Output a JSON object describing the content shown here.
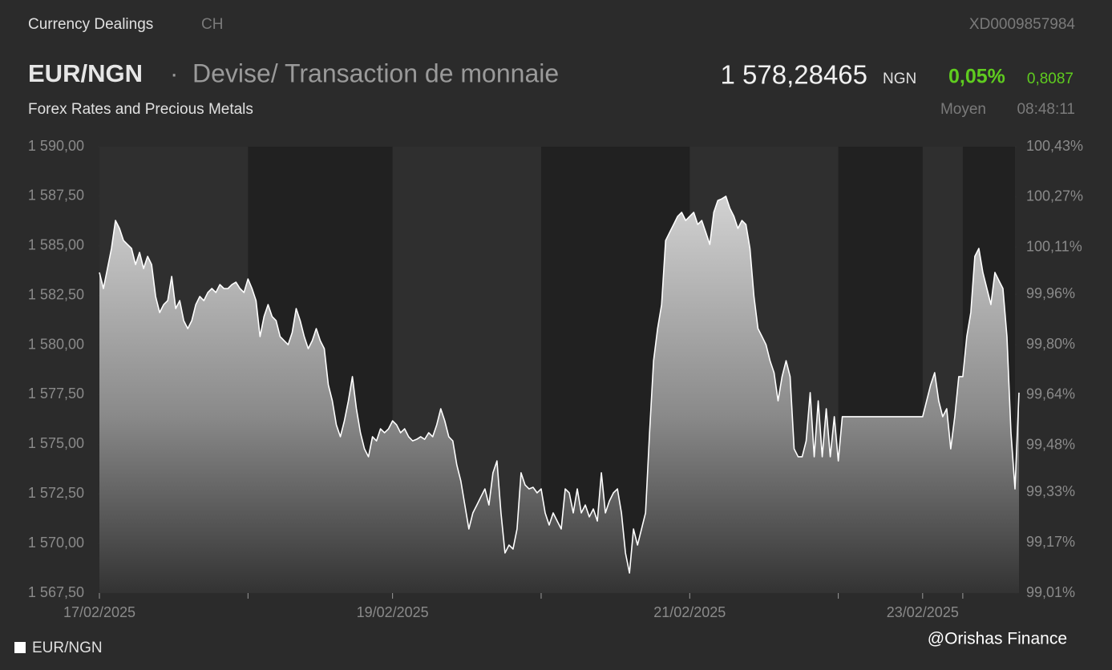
{
  "header": {
    "section": "Currency Dealings",
    "market": "CH",
    "isin": "XD0009857984",
    "symbol": "EUR/NGN",
    "separator": "·",
    "description": "Devise/ Transaction de monnaie",
    "category": "Forex Rates and Precious Metals",
    "price": "1 578,28465",
    "currency": "NGN",
    "change_pct": "0,05%",
    "change_abs": "0,8087",
    "price_type": "Moyen",
    "time": "08:48:11"
  },
  "watermark": "@Orishas Finance",
  "chart_data": {
    "type": "area",
    "xlim": [
      0,
      228
    ],
    "xticks": [
      {
        "value": 0,
        "label": "17/02/2025"
      },
      {
        "value": 37,
        "label": null
      },
      {
        "value": 73,
        "label": "19/02/2025"
      },
      {
        "value": 110,
        "label": null
      },
      {
        "value": 147,
        "label": "21/02/2025"
      },
      {
        "value": 184,
        "label": null
      },
      {
        "value": 205,
        "label": "23/02/2025"
      },
      {
        "value": 215,
        "label": null
      }
    ],
    "shaded_ranges": [
      [
        37,
        73
      ],
      [
        110,
        147
      ],
      [
        184,
        205
      ],
      [
        215,
        228
      ]
    ],
    "ylim": [
      1567.5,
      1590
    ],
    "yticks": [
      {
        "value": 1567.5,
        "label": "1 567,50"
      },
      {
        "value": 1570,
        "label": "1 570,00"
      },
      {
        "value": 1572.5,
        "label": "1 572,50"
      },
      {
        "value": 1575,
        "label": "1 575,00"
      },
      {
        "value": 1577.5,
        "label": "1 577,50"
      },
      {
        "value": 1580,
        "label": "1 580,00"
      },
      {
        "value": 1582.5,
        "label": "1 582,50"
      },
      {
        "value": 1585,
        "label": "1 585,00"
      },
      {
        "value": 1587.5,
        "label": "1 587,50"
      },
      {
        "value": 1590,
        "label": "1 590,00"
      }
    ],
    "y2lim": [
      99.01,
      100.43
    ],
    "y2ticks": [
      {
        "value": 99.01,
        "label": "99,01%"
      },
      {
        "value": 99.17,
        "label": "99,17%"
      },
      {
        "value": 99.33,
        "label": "99,33%"
      },
      {
        "value": 99.48,
        "label": "99,48%"
      },
      {
        "value": 99.64,
        "label": "99,64%"
      },
      {
        "value": 99.8,
        "label": "99,80%"
      },
      {
        "value": 99.96,
        "label": "99,96%"
      },
      {
        "value": 100.11,
        "label": "100,11%"
      },
      {
        "value": 100.27,
        "label": "100,27%"
      },
      {
        "value": 100.43,
        "label": "100,43%"
      }
    ],
    "series": [
      {
        "name": "EUR/NGN",
        "color": "#ffffff",
        "values": [
          1583.66,
          1582.85,
          1583.86,
          1584.87,
          1586.28,
          1585.88,
          1585.27,
          1585.07,
          1584.87,
          1584.06,
          1584.67,
          1583.86,
          1584.47,
          1584.06,
          1582.45,
          1581.64,
          1582.04,
          1582.24,
          1583.46,
          1581.84,
          1582.24,
          1581.23,
          1580.83,
          1581.23,
          1582.04,
          1582.45,
          1582.24,
          1582.65,
          1582.85,
          1582.65,
          1583.05,
          1582.85,
          1582.85,
          1583.05,
          1583.17,
          1582.85,
          1582.65,
          1583.33,
          1582.85,
          1582.24,
          1580.43,
          1581.44,
          1582.04,
          1581.44,
          1581.23,
          1580.43,
          1580.22,
          1580.02,
          1580.63,
          1581.84,
          1581.23,
          1580.43,
          1579.82,
          1580.22,
          1580.83,
          1580.22,
          1579.82,
          1578.0,
          1577.19,
          1575.98,
          1575.38,
          1576.18,
          1577.19,
          1578.41,
          1576.79,
          1575.58,
          1574.77,
          1574.37,
          1575.38,
          1575.17,
          1575.78,
          1575.58,
          1575.78,
          1576.18,
          1575.98,
          1575.58,
          1575.78,
          1575.38,
          1575.17,
          1575.25,
          1575.38,
          1575.25,
          1575.58,
          1575.38,
          1575.98,
          1576.79,
          1576.18,
          1575.38,
          1575.17,
          1573.96,
          1573.15,
          1571.94,
          1570.73,
          1571.54,
          1571.94,
          1572.35,
          1572.75,
          1571.94,
          1573.56,
          1574.16,
          1571.54,
          1569.52,
          1569.92,
          1569.72,
          1570.73,
          1573.56,
          1572.95,
          1572.75,
          1572.83,
          1572.55,
          1572.75,
          1571.54,
          1570.93,
          1571.54,
          1571.13,
          1570.73,
          1572.75,
          1572.55,
          1571.54,
          1572.75,
          1571.54,
          1571.94,
          1571.34,
          1571.74,
          1571.13,
          1573.56,
          1571.54,
          1572.14,
          1572.55,
          1572.75,
          1571.54,
          1569.52,
          1568.51,
          1570.73,
          1569.92,
          1570.73,
          1571.54,
          1575.58,
          1579.21,
          1580.83,
          1582.04,
          1585.27,
          1585.68,
          1586.08,
          1586.49,
          1586.69,
          1586.28,
          1586.49,
          1586.69,
          1586.08,
          1586.28,
          1585.68,
          1585.07,
          1586.69,
          1587.29,
          1587.37,
          1587.5,
          1586.89,
          1586.49,
          1585.88,
          1586.28,
          1586.08,
          1584.87,
          1582.45,
          1580.83,
          1580.43,
          1580.02,
          1579.21,
          1578.61,
          1577.19,
          1578.41,
          1579.21,
          1578.41,
          1574.77,
          1574.37,
          1574.37,
          1575.17,
          1577.6,
          1574.37,
          1577.19,
          1574.37,
          1576.79,
          1574.37,
          1576.39,
          1574.16,
          1576.39,
          1576.39,
          1576.39,
          1576.39,
          1576.39,
          1576.39,
          1576.39,
          1576.39,
          1576.39,
          1576.39,
          1576.39,
          1576.39,
          1576.39,
          1576.39,
          1576.39,
          1576.39,
          1576.39,
          1576.39,
          1576.39,
          1576.39,
          1576.39,
          1577.19,
          1578.0,
          1578.61,
          1577.19,
          1576.39,
          1576.79,
          1574.77,
          1576.39,
          1578.41,
          1578.41,
          1580.43,
          1581.64,
          1584.47,
          1584.87,
          1583.66,
          1582.85,
          1582.04,
          1583.66,
          1583.25,
          1582.85,
          1580.43,
          1575.58,
          1572.75,
          1577.6
        ]
      }
    ]
  }
}
